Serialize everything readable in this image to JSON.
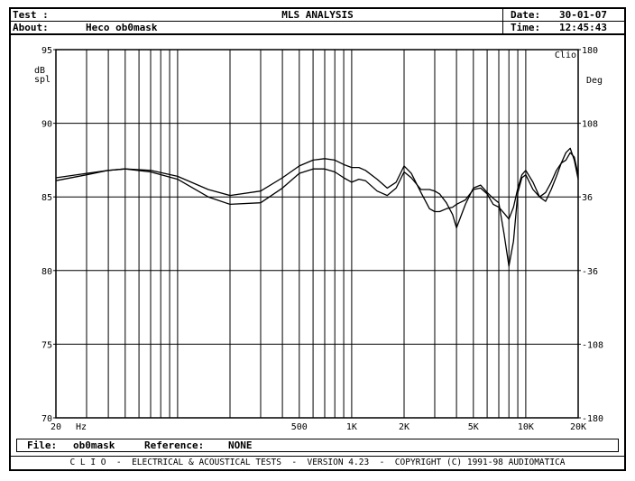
{
  "header": {
    "test_label": "Test :",
    "about_label": "About:",
    "about_value": "Heco ob0mask",
    "title": "MLS ANALYSIS",
    "date_label": "Date:",
    "date_value": "30-01-07",
    "time_label": "Time:",
    "time_value": "12:45:43"
  },
  "footer": {
    "file_label": "File:",
    "file_value": "ob0mask",
    "reference_label": "Reference:",
    "reference_value": "NONE",
    "copyright": "C L I O  -  ELECTRICAL & ACOUSTICAL TESTS  -  VERSION 4.23  -  COPYRIGHT (C) 1991-98 AUDIOMATICA"
  },
  "chart_data": {
    "type": "line",
    "corner_label": "Clio",
    "ylabel_left": [
      "dB",
      "spl"
    ],
    "ylabel_right": "Deg",
    "x_scale": "log",
    "xlim": [
      20,
      20000
    ],
    "ylim": [
      70,
      95
    ],
    "y2lim": [
      -180,
      180
    ],
    "grid": true,
    "x_tick_labels": [
      {
        "value": 20,
        "label": "20"
      },
      {
        "value": 500,
        "label": "500"
      },
      {
        "value": 1000,
        "label": "1K"
      },
      {
        "value": 2000,
        "label": "2K"
      },
      {
        "value": 5000,
        "label": "5K"
      },
      {
        "value": 10000,
        "label": "10K"
      },
      {
        "value": 20000,
        "label": "20K"
      }
    ],
    "x_unit_label": "Hz",
    "y_ticks": [
      95,
      90,
      85,
      80,
      75,
      70
    ],
    "y2_ticks": [
      180,
      108,
      36,
      -36,
      -108,
      -180
    ],
    "series": [
      {
        "x": [
          20,
          30,
          40,
          50,
          70,
          100,
          150,
          200,
          300,
          400,
          500,
          600,
          700,
          800,
          900,
          1000,
          1100,
          1200,
          1400,
          1600,
          1800,
          2000,
          2200,
          2500,
          2800,
          3000,
          3200,
          3500,
          3800,
          4000,
          4500,
          5000,
          5500,
          6000,
          6500,
          7000,
          7500,
          8000,
          8500,
          9000,
          9500,
          10000,
          11000,
          12000,
          13000,
          14000,
          15000,
          16000,
          17000,
          18000,
          19000,
          20000
        ],
        "y": [
          86.1,
          86.5,
          86.8,
          86.9,
          86.8,
          86.4,
          85.5,
          85.1,
          85.4,
          86.3,
          87.1,
          87.5,
          87.6,
          87.5,
          87.2,
          87.0,
          87.0,
          86.8,
          86.2,
          85.6,
          86.0,
          87.1,
          86.6,
          85.3,
          84.2,
          84.0,
          84.0,
          84.2,
          84.3,
          84.5,
          84.8,
          85.5,
          85.6,
          85.2,
          84.5,
          84.3,
          83.9,
          83.5,
          84.3,
          85.6,
          86.5,
          86.8,
          86.0,
          85.0,
          84.7,
          85.5,
          86.4,
          87.3,
          88.0,
          88.3,
          87.5,
          86.2
        ]
      },
      {
        "x": [
          20,
          30,
          40,
          50,
          70,
          100,
          150,
          200,
          300,
          400,
          500,
          600,
          700,
          800,
          900,
          1000,
          1100,
          1200,
          1400,
          1600,
          1800,
          2000,
          2200,
          2500,
          2800,
          3000,
          3200,
          3500,
          3800,
          4000,
          4500,
          5000,
          5500,
          6000,
          6500,
          7000,
          7500,
          8000,
          8500,
          9000,
          9500,
          10000,
          11000,
          12000,
          13000,
          14000,
          15000,
          16000,
          17000,
          18000,
          19000,
          20000
        ],
        "y": [
          86.3,
          86.6,
          86.8,
          86.9,
          86.7,
          86.2,
          85.0,
          84.5,
          84.6,
          85.6,
          86.6,
          86.9,
          86.9,
          86.7,
          86.3,
          86.0,
          86.2,
          86.1,
          85.4,
          85.1,
          85.6,
          86.7,
          86.3,
          85.5,
          85.5,
          85.4,
          85.2,
          84.6,
          83.8,
          82.9,
          84.5,
          85.6,
          85.8,
          85.3,
          84.9,
          84.6,
          82.5,
          80.3,
          82.0,
          85.3,
          86.3,
          86.5,
          85.5,
          85.0,
          85.3,
          86.0,
          86.8,
          87.3,
          87.5,
          88.0,
          87.7,
          86.5
        ]
      }
    ]
  }
}
